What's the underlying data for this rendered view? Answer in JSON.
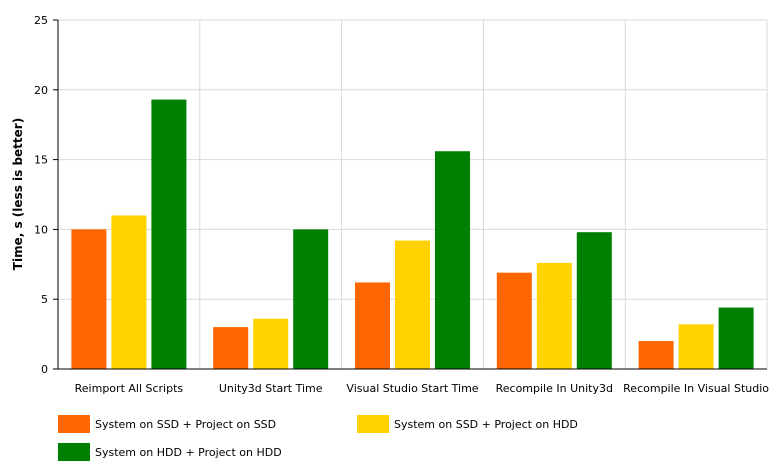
{
  "chart_data": {
    "type": "bar",
    "title": "",
    "xlabel": "",
    "ylabel": "Time, s (less is better)",
    "ylim": [
      0,
      25
    ],
    "yticks": [
      "0",
      "5",
      "10",
      "15",
      "20",
      "25"
    ],
    "grid": true,
    "legend_position": "bottom",
    "categories": [
      "Reimport All Scripts",
      "Unity3d Start Time",
      "Visual Studio Start Time",
      "Recompile In Unity3d",
      "Recompile In Visual Studio"
    ],
    "series": [
      {
        "name": "System on SSD + Project on SSD",
        "color": "#ff6600",
        "values": [
          10.0,
          3.0,
          6.2,
          6.9,
          2.0
        ]
      },
      {
        "name": "System on SSD + Project on HDD",
        "color": "#ffd200",
        "values": [
          11.0,
          3.6,
          9.2,
          7.6,
          3.2
        ]
      },
      {
        "name": "System on HDD + Project on HDD",
        "color": "#008000",
        "values": [
          19.3,
          10.0,
          15.6,
          9.8,
          4.4
        ]
      }
    ]
  }
}
